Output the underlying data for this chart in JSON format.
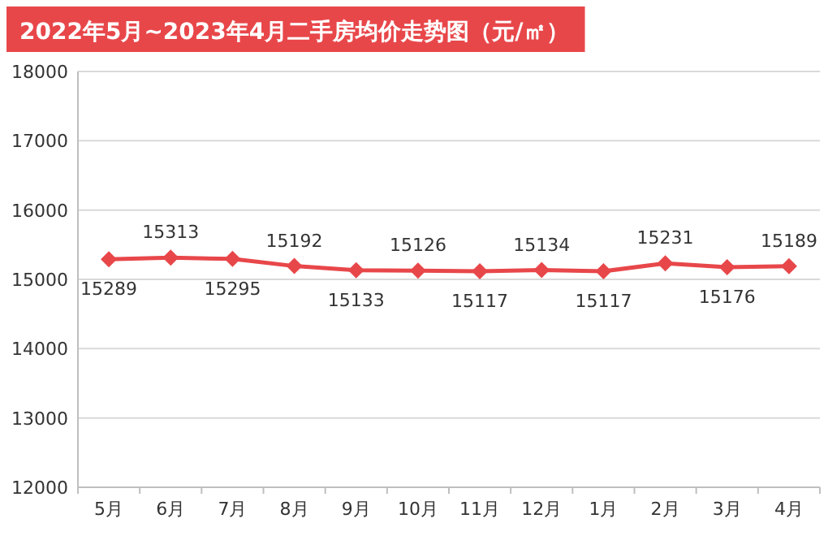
{
  "chart_data": {
    "type": "line",
    "title": "2022年5月~2023年4月二手房均价走势图（元/㎡）",
    "categories": [
      "5月",
      "6月",
      "7月",
      "8月",
      "9月",
      "10月",
      "11月",
      "12月",
      "1月",
      "2月",
      "3月",
      "4月"
    ],
    "series": [
      {
        "color": "#e8474a",
        "values": [
          15289,
          15313,
          15295,
          15192,
          15133,
          15126,
          15117,
          15134,
          15117,
          15231,
          15176,
          15189
        ]
      }
    ],
    "ylim": [
      12000,
      18000
    ],
    "yticks": [
      12000,
      13000,
      14000,
      15000,
      16000,
      17000,
      18000
    ],
    "grid": "y",
    "marker": "diamond",
    "data_labels": true
  }
}
